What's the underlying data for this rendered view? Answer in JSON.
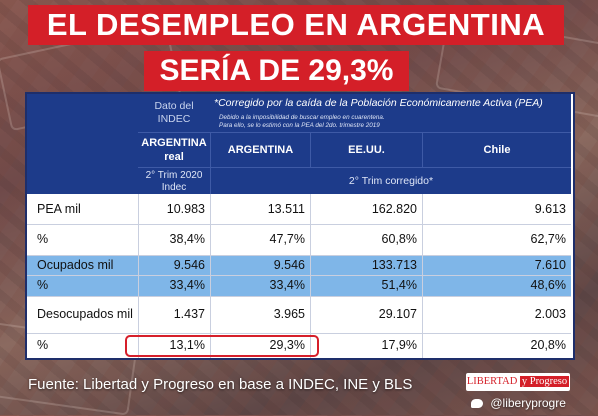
{
  "title": {
    "line1": "EL DESEMPLEO EN ARGENTINA",
    "line2": "SERÍA DE 29,3%"
  },
  "table": {
    "col_dato": "Dato del INDEC",
    "note_title": "*Corregido por la caída de la Población Económicamente Activa (PEA)",
    "note_line1": "Debido a la imposibilidad de buscar empleo en cuarentena.",
    "note_line2": "Para ello, se lo estimó con la PEA del 2do. trimestre 2019",
    "columns": [
      "ARGENTINA real",
      "ARGENTINA",
      "EE.UU.",
      "Chile"
    ],
    "sub_real": "2° Trim 2020 Indec",
    "sub_corr": "2° Trim corregido*",
    "rows": [
      {
        "label": "PEA mil",
        "values": [
          "10.983",
          "13.511",
          "162.820",
          "9.613"
        ]
      },
      {
        "label": "%",
        "values": [
          "38,4%",
          "47,7%",
          "60,8%",
          "62,7%"
        ]
      },
      {
        "label": "Ocupados mil",
        "values": [
          "9.546",
          "9.546",
          "133.713",
          "7.610"
        ]
      },
      {
        "label": "%",
        "values": [
          "33,4%",
          "33,4%",
          "51,4%",
          "48,6%"
        ]
      },
      {
        "label": "Desocupados mil",
        "values": [
          "1.437",
          "3.965",
          "29.107",
          "2.003"
        ]
      },
      {
        "label": "%",
        "values": [
          "13,1%",
          "29,3%",
          "17,9%",
          "20,8%"
        ]
      }
    ]
  },
  "footer": {
    "source": "Fuente: Libertad y Progreso en base a INDEC, INE y  BLS",
    "logo_a": "LIBERTAD",
    "logo_b": "y Progreso",
    "handle": "@liberyprogre"
  },
  "colors": {
    "title_red": "#d41f28",
    "header_blue": "#1d3b8a",
    "band_blue": "#7fb6e8",
    "highlight_red": "#d61f2a"
  }
}
